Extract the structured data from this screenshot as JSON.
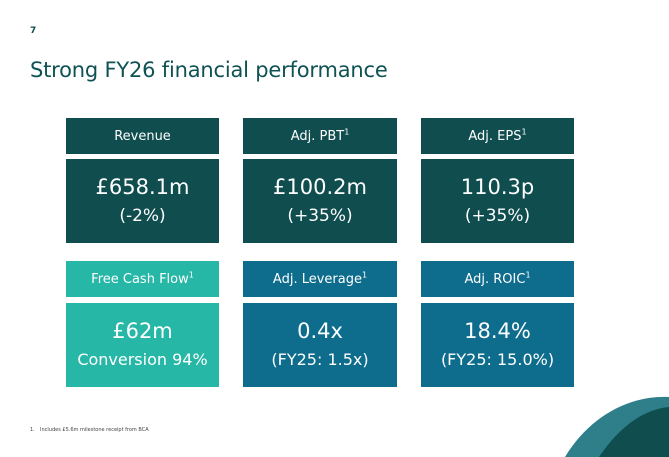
{
  "page_number": "7",
  "title": "Strong FY26 financial performance",
  "tiles": [
    {
      "label": "Revenue",
      "sup": "",
      "value": "£658.1m",
      "sub": "(-2%)"
    },
    {
      "label": "Adj. PBT",
      "sup": "1",
      "value": "£100.2m",
      "sub": "(+35%)"
    },
    {
      "label": "Adj. EPS",
      "sup": "1",
      "value": "110.3p",
      "sub": "(+35%)"
    },
    {
      "label": "Free Cash Flow",
      "sup": "1",
      "value": "£62m",
      "sub": "Conversion 94%"
    },
    {
      "label": "Adj. Leverage",
      "sup": "1",
      "value": "0.4x",
      "sub": "(FY25: 1.5x)"
    },
    {
      "label": "Adj. ROIC",
      "sup": "1",
      "value": "18.4%",
      "sub": "(FY25: 15.0%)"
    }
  ],
  "footnote": {
    "number": "1.",
    "text": "Includes £5.6m milestone receipt from BCA"
  },
  "colors": {
    "dark": "#0f4d4f",
    "teal": "#26b7a7",
    "blue": "#0e6d8d"
  }
}
